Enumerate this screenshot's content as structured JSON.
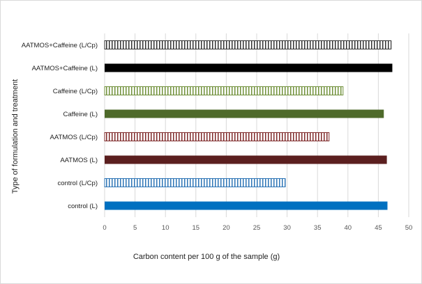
{
  "chart_data": {
    "type": "bar",
    "orientation": "horizontal",
    "categories": [
      "control (L)",
      "control (L/Cp)",
      "AATMOS (L)",
      "AATMOS (L/Cp)",
      "Caffeine (L)",
      "Caffeine (L/Cp)",
      "AATMOS+Caffeine (L)",
      "AATMOS+Caffeine (L/Cp)"
    ],
    "values": [
      46.5,
      29.7,
      46.4,
      36.9,
      45.9,
      39.2,
      47.3,
      47.1
    ],
    "colors": [
      "#0070c0",
      "#2e75b6",
      "#5b1f1f",
      "#7f2a2a",
      "#4e6a2a",
      "#70903a",
      "#000000",
      "#333333"
    ],
    "patterns": [
      "solid",
      "vertical-stripes",
      "solid",
      "vertical-stripes",
      "solid",
      "vertical-stripes",
      "solid",
      "vertical-stripes"
    ],
    "title": "",
    "xlabel": "Carbon content per 100 g of the sample (g)",
    "ylabel": "Type of formulation and treatment",
    "xlim": [
      0,
      50
    ],
    "xticks": [
      0,
      5,
      10,
      15,
      20,
      25,
      30,
      35,
      40,
      45,
      50
    ],
    "grid": "vertical",
    "legend": "none"
  }
}
